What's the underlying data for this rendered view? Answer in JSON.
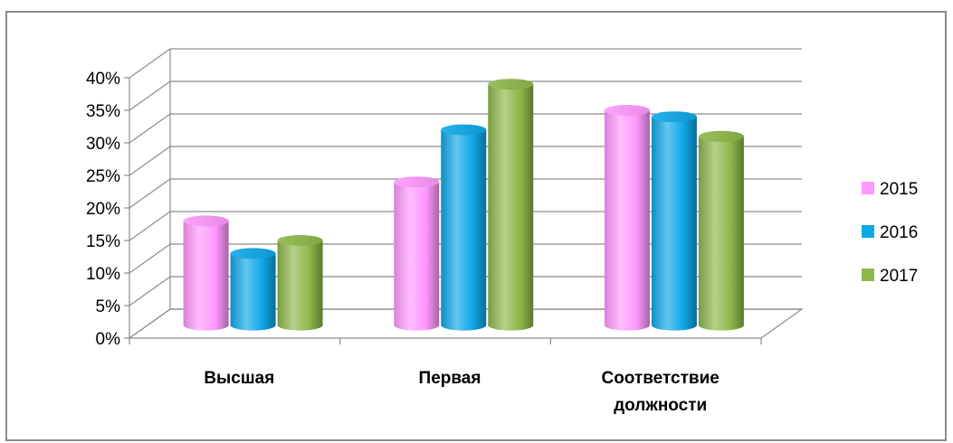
{
  "chart_data": {
    "type": "bar",
    "categories": [
      "Высшая",
      "Первая",
      "Соответствие должности"
    ],
    "category_lines": [
      [
        "Высшая"
      ],
      [
        "Первая"
      ],
      [
        "Соответствие",
        "должности"
      ]
    ],
    "series": [
      {
        "name": "2015",
        "values": [
          16,
          22,
          33
        ],
        "color": "#ff99ff"
      },
      {
        "name": "2016",
        "values": [
          11,
          30,
          32
        ],
        "color": "#0fa8e8"
      },
      {
        "name": "2017",
        "values": [
          13,
          37,
          29
        ],
        "color": "#8fb84a"
      }
    ],
    "yticks": [
      "0%",
      "5%",
      "10%",
      "15%",
      "20%",
      "25%",
      "30%",
      "35%",
      "40%"
    ],
    "ylim": [
      0,
      40
    ],
    "legend_position": "right",
    "grid": true,
    "title": "",
    "xlabel": "",
    "ylabel": ""
  }
}
